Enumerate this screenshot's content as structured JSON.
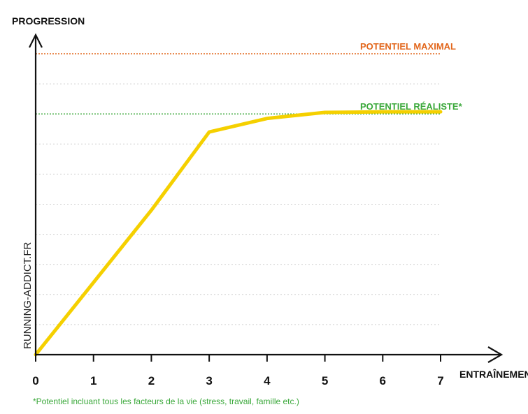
{
  "chart_data": {
    "type": "line",
    "ylabel": "PROGRESSION",
    "xlabel": "ENTRAÎNEMENT",
    "watermark": "RUNNING-ADDICT.FR",
    "x_ticks": [
      "0",
      "1",
      "2",
      "3",
      "4",
      "5",
      "6",
      "7"
    ],
    "xlim": [
      0,
      7
    ],
    "ylim": [
      0,
      10
    ],
    "grid": true,
    "series": [
      {
        "color": "#f5d000",
        "x": [
          0,
          1,
          2,
          3,
          4,
          5,
          6,
          7
        ],
        "y": [
          0,
          2.4,
          4.8,
          7.4,
          7.85,
          8.05,
          8.07,
          8.07
        ]
      }
    ],
    "reference_lines": [
      {
        "label": "POTENTIEL MAXIMAL",
        "y": 10,
        "color": "#e2661b"
      },
      {
        "label": "POTENTIEL RÉALISTE*",
        "y": 8,
        "color": "#3aa83a"
      }
    ],
    "footnote": "*Potentiel incluant tous les facteurs de la vie (stress, travail, famille etc.)"
  }
}
